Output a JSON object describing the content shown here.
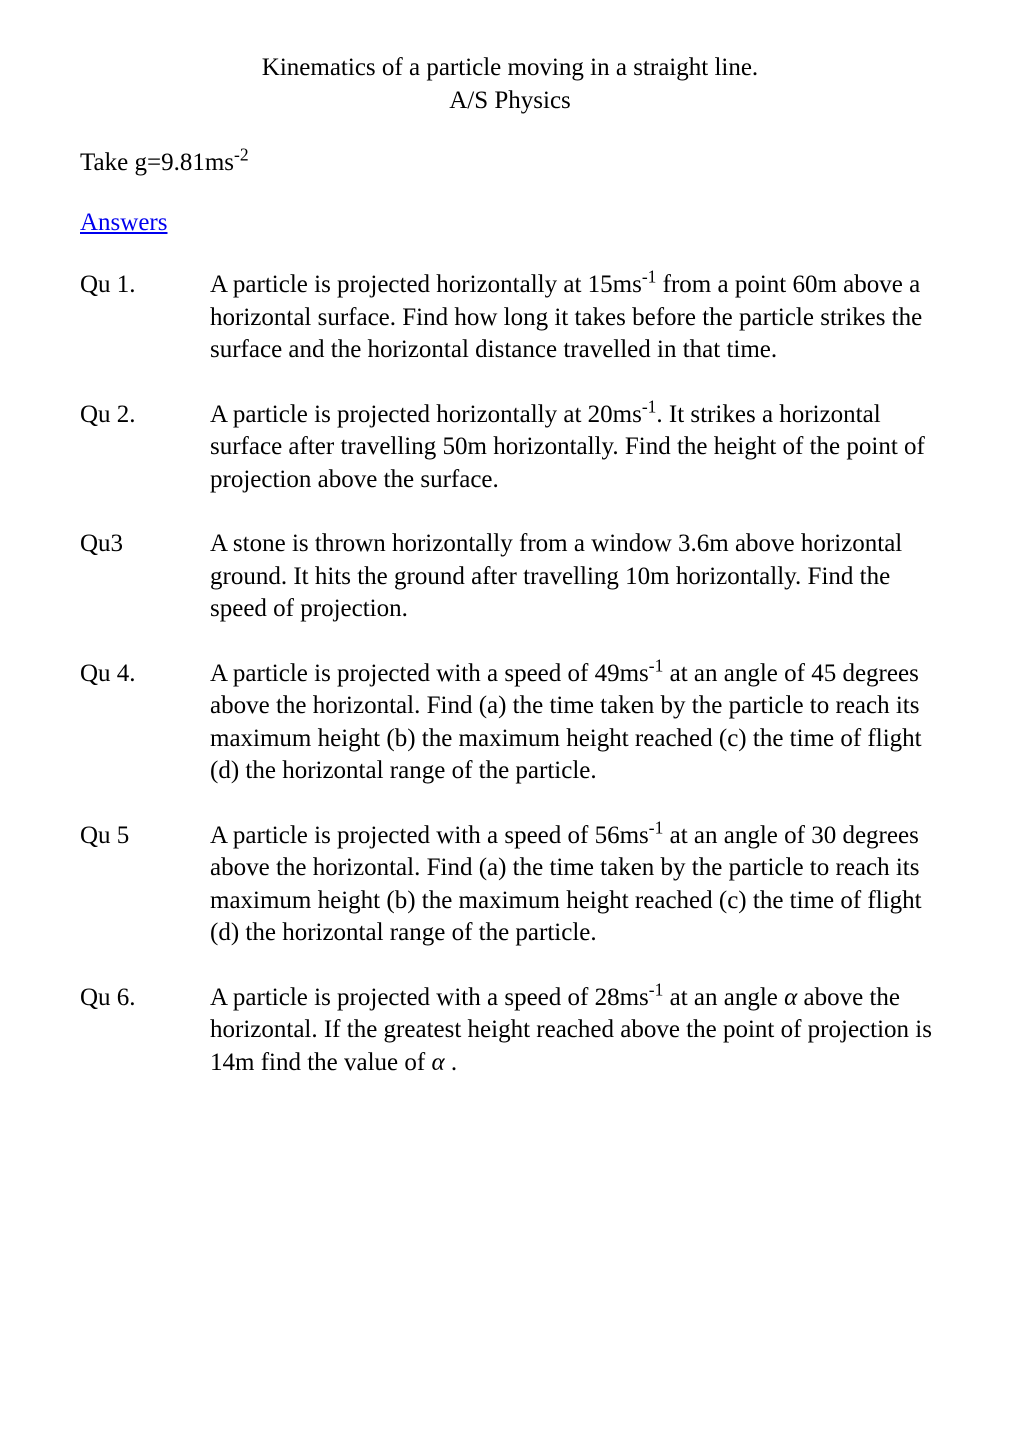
{
  "title": {
    "line1": "Kinematics of a particle moving in a straight line.",
    "line2": "A/S Physics"
  },
  "take_g": {
    "prefix": "Take g=9.81ms",
    "superscript": "-2"
  },
  "answers_link": "Answers",
  "questions": [
    {
      "label": "Qu 1.",
      "segments": [
        {
          "t": "text",
          "v": "A particle is projected horizontally at 15ms"
        },
        {
          "t": "sup",
          "v": "-1"
        },
        {
          "t": "text",
          "v": " from a point 60m above a horizontal surface. Find how long it takes before the particle strikes the surface and the horizontal distance travelled in that time."
        }
      ]
    },
    {
      "label": "Qu 2.",
      "segments": [
        {
          "t": "text",
          "v": "A particle is projected horizontally at 20ms"
        },
        {
          "t": "sup",
          "v": "-1"
        },
        {
          "t": "text",
          "v": ". It strikes a horizontal surface after travelling 50m horizontally. Find the height of the point of projection above the surface."
        }
      ]
    },
    {
      "label": "Qu3",
      "segments": [
        {
          "t": "text",
          "v": "A stone is thrown horizontally from a window 3.6m above horizontal ground. It hits the ground after travelling 10m horizontally. Find the speed of projection."
        }
      ]
    },
    {
      "label": "Qu 4.",
      "segments": [
        {
          "t": "text",
          "v": "A particle is projected with a speed of 49ms"
        },
        {
          "t": "sup",
          "v": "-1"
        },
        {
          "t": "text",
          "v": " at an angle of 45 degrees above the horizontal. Find (a) the time taken by the particle to reach its maximum height (b) the maximum height reached (c) the time of flight (d) the horizontal range of the particle."
        }
      ]
    },
    {
      "label": "Qu 5",
      "segments": [
        {
          "t": "text",
          "v": "A particle is projected with a speed of 56ms"
        },
        {
          "t": "sup",
          "v": "-1"
        },
        {
          "t": "text",
          "v": " at an angle of 30 degrees above the horizontal. Find (a) the time taken by the particle to reach its maximum height (b) the maximum height reached (c) the time of flight (d) the horizontal range of the particle."
        }
      ]
    },
    {
      "label": "Qu 6.",
      "segments": [
        {
          "t": "text",
          "v": "A particle is projected with a speed of 28ms"
        },
        {
          "t": "sup",
          "v": "-1"
        },
        {
          "t": "text",
          "v": " at an angle "
        },
        {
          "t": "alpha",
          "v": "α"
        },
        {
          "t": "text",
          "v": " above the horizontal. If the greatest height reached above the point of projection is 14m find the value of "
        },
        {
          "t": "alpha",
          "v": "α"
        },
        {
          "t": "text",
          "v": " ."
        }
      ]
    }
  ],
  "colors": {
    "background": "#ffffff",
    "text": "#000000",
    "link": "#0000ee"
  },
  "typography": {
    "font_family": "Times New Roman",
    "body_fontsize": 25,
    "line_height": 1.3
  }
}
